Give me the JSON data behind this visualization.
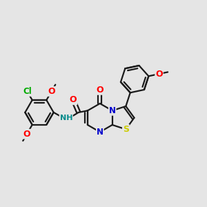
{
  "background_color": "#e5e5e5",
  "bond_color": "#1a1a1a",
  "bond_width": 1.6,
  "atom_colors": {
    "O": "#ff0000",
    "N": "#0000cc",
    "S": "#cccc00",
    "Cl": "#00aa00",
    "C": "#1a1a1a",
    "H": "#1a1a1a"
  },
  "font_size": 8.0,
  "nh_color": "#008b8b"
}
